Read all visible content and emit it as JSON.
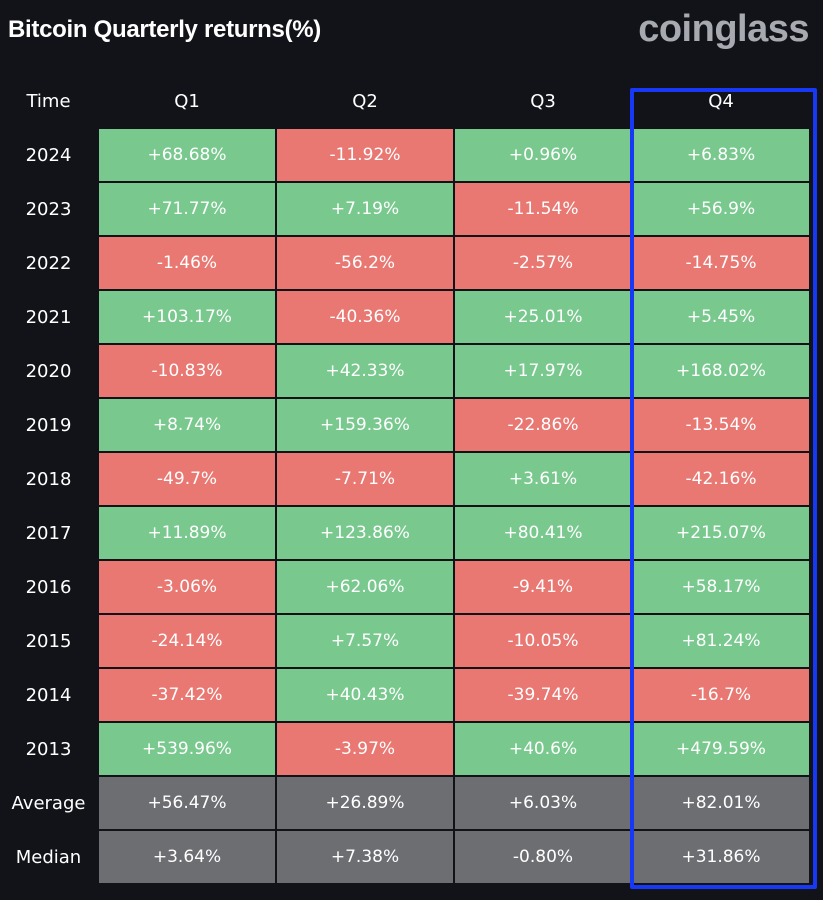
{
  "header": {
    "title": "Bitcoin Quarterly returns(%)",
    "brand": "coinglass"
  },
  "colors": {
    "positive": "#79c98f",
    "negative": "#e97873",
    "summary": "#6d6e72",
    "highlight_border": "#1739f5",
    "background": "#121318"
  },
  "chart_data": {
    "type": "heatmap",
    "title": "Bitcoin Quarterly returns(%)",
    "row_header": "Time",
    "columns": [
      "Q1",
      "Q2",
      "Q3",
      "Q4"
    ],
    "highlighted_column": "Q4",
    "rows": [
      {
        "label": "2024",
        "cells": [
          "+68.68%",
          "-11.92%",
          "+0.96%",
          "+6.83%"
        ],
        "values": [
          68.68,
          -11.92,
          0.96,
          6.83
        ]
      },
      {
        "label": "2023",
        "cells": [
          "+71.77%",
          "+7.19%",
          "-11.54%",
          "+56.9%"
        ],
        "values": [
          71.77,
          7.19,
          -11.54,
          56.9
        ]
      },
      {
        "label": "2022",
        "cells": [
          "-1.46%",
          "-56.2%",
          "-2.57%",
          "-14.75%"
        ],
        "values": [
          -1.46,
          -56.2,
          -2.57,
          -14.75
        ]
      },
      {
        "label": "2021",
        "cells": [
          "+103.17%",
          "-40.36%",
          "+25.01%",
          "+5.45%"
        ],
        "values": [
          103.17,
          -40.36,
          25.01,
          5.45
        ]
      },
      {
        "label": "2020",
        "cells": [
          "-10.83%",
          "+42.33%",
          "+17.97%",
          "+168.02%"
        ],
        "values": [
          -10.83,
          42.33,
          17.97,
          168.02
        ]
      },
      {
        "label": "2019",
        "cells": [
          "+8.74%",
          "+159.36%",
          "-22.86%",
          "-13.54%"
        ],
        "values": [
          8.74,
          159.36,
          -22.86,
          -13.54
        ]
      },
      {
        "label": "2018",
        "cells": [
          "-49.7%",
          "-7.71%",
          "+3.61%",
          "-42.16%"
        ],
        "values": [
          -49.7,
          -7.71,
          3.61,
          -42.16
        ]
      },
      {
        "label": "2017",
        "cells": [
          "+11.89%",
          "+123.86%",
          "+80.41%",
          "+215.07%"
        ],
        "values": [
          11.89,
          123.86,
          80.41,
          215.07
        ]
      },
      {
        "label": "2016",
        "cells": [
          "-3.06%",
          "+62.06%",
          "-9.41%",
          "+58.17%"
        ],
        "values": [
          -3.06,
          62.06,
          -9.41,
          58.17
        ]
      },
      {
        "label": "2015",
        "cells": [
          "-24.14%",
          "+7.57%",
          "-10.05%",
          "+81.24%"
        ],
        "values": [
          -24.14,
          7.57,
          -10.05,
          81.24
        ]
      },
      {
        "label": "2014",
        "cells": [
          "-37.42%",
          "+40.43%",
          "-39.74%",
          "-16.7%"
        ],
        "values": [
          -37.42,
          40.43,
          -39.74,
          -16.7
        ]
      },
      {
        "label": "2013",
        "cells": [
          "+539.96%",
          "-3.97%",
          "+40.6%",
          "+479.59%"
        ],
        "values": [
          539.96,
          -3.97,
          40.6,
          479.59
        ]
      }
    ],
    "summary_rows": [
      {
        "label": "Average",
        "cells": [
          "+56.47%",
          "+26.89%",
          "+6.03%",
          "+82.01%"
        ],
        "values": [
          56.47,
          26.89,
          6.03,
          82.01
        ]
      },
      {
        "label": "Median",
        "cells": [
          "+3.64%",
          "+7.38%",
          "-0.80%",
          "+31.86%"
        ],
        "values": [
          3.64,
          7.38,
          -0.8,
          31.86
        ]
      }
    ]
  }
}
